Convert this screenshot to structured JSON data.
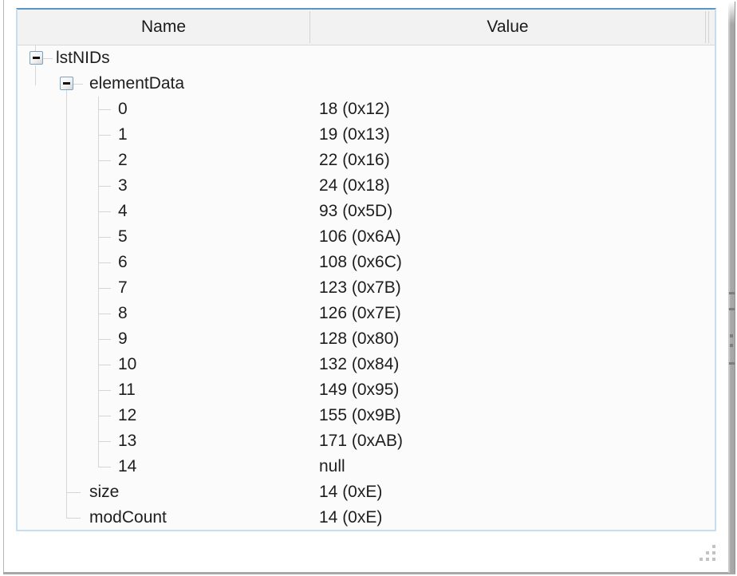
{
  "table": {
    "columns": [
      "Name",
      "Value"
    ],
    "rows": [
      {
        "name": "lstNIDs",
        "value": "",
        "level": 0,
        "expander": true,
        "expanded": true
      },
      {
        "name": "elementData",
        "value": "",
        "level": 1,
        "expander": true,
        "expanded": true
      },
      {
        "name": "0",
        "value": "18 (0x12)",
        "level": 2,
        "expander": false
      },
      {
        "name": "1",
        "value": "19 (0x13)",
        "level": 2,
        "expander": false
      },
      {
        "name": "2",
        "value": "22 (0x16)",
        "level": 2,
        "expander": false
      },
      {
        "name": "3",
        "value": "24 (0x18)",
        "level": 2,
        "expander": false
      },
      {
        "name": "4",
        "value": "93 (0x5D)",
        "level": 2,
        "expander": false
      },
      {
        "name": "5",
        "value": "106 (0x6A)",
        "level": 2,
        "expander": false
      },
      {
        "name": "6",
        "value": "108 (0x6C)",
        "level": 2,
        "expander": false
      },
      {
        "name": "7",
        "value": "123 (0x7B)",
        "level": 2,
        "expander": false
      },
      {
        "name": "8",
        "value": "126 (0x7E)",
        "level": 2,
        "expander": false
      },
      {
        "name": "9",
        "value": "128 (0x80)",
        "level": 2,
        "expander": false
      },
      {
        "name": "10",
        "value": "132 (0x84)",
        "level": 2,
        "expander": false
      },
      {
        "name": "11",
        "value": "149 (0x95)",
        "level": 2,
        "expander": false
      },
      {
        "name": "12",
        "value": "155 (0x9B)",
        "level": 2,
        "expander": false
      },
      {
        "name": "13",
        "value": "171 (0xAB)",
        "level": 2,
        "expander": false
      },
      {
        "name": "14",
        "value": "null",
        "level": 2,
        "expander": false
      },
      {
        "name": "size",
        "value": "14 (0xE)",
        "level": 1,
        "expander": false
      },
      {
        "name": "modCount",
        "value": "14 (0xE)",
        "level": 1,
        "expander": false
      }
    ]
  },
  "icons": {
    "expander_glyph": "−",
    "resize_grip": "resize-grip-icon",
    "scrollbar": "vertical-scrollbar"
  },
  "colors": {
    "panel_border_top": "#5b95c4",
    "panel_border": "#c8deee",
    "header_bg": "#f2f2f2",
    "row_bg": "#fbfbfb",
    "text": "#1e1e1e",
    "tree_line": "#d5d5d5",
    "window_border": "#a8a8a8"
  }
}
